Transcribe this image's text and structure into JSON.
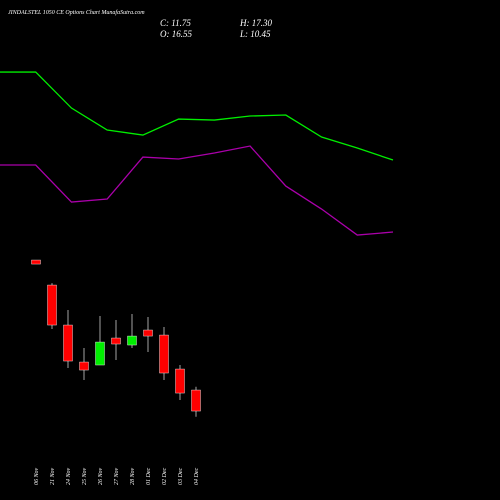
{
  "header": {
    "title": "JINDALSTEL 1050 CE Options Chart MunafaSutra.com",
    "close": "C: 11.75",
    "open": "O: 16.55",
    "high": "H: 17.30",
    "low": "L: 10.45"
  },
  "chart_data": [
    {
      "type": "line",
      "ylim": [
        9.7,
        92
      ],
      "series": [
        {
          "color": "#00ee00",
          "values": [
            89.24,
            89.24,
            81.02,
            75.99,
            74.84,
            78.5,
            78.27,
            79.19,
            79.42,
            74.39,
            71.87,
            69.13
          ]
        },
        {
          "color": "#aa00aa",
          "values": [
            67.99,
            67.99,
            59.53,
            60.21,
            69.81,
            69.36,
            70.73,
            72.33,
            63.18,
            57.93,
            51.98,
            52.67
          ]
        }
      ]
    },
    {
      "type": "candlestick",
      "ylim": [
        9.7,
        92
      ],
      "up_color": "#00ee00",
      "down_color": "#ff0000",
      "categories": [
        "06 Nov",
        "21 Nov",
        "24 Nov",
        "25 Nov",
        "26 Nov",
        "27 Nov",
        "28 Nov",
        "01 Dec",
        "02 Dec",
        "03 Dec",
        "04 Dec"
      ],
      "open": [
        46.27,
        40.55,
        31.41,
        22.95,
        22.27,
        28.44,
        26.84,
        30.27,
        29.12,
        21.35,
        16.55
      ],
      "close": [
        45.35,
        31.41,
        23.18,
        21.12,
        27.52,
        27.07,
        28.89,
        28.89,
        20.44,
        15.86,
        11.75
      ],
      "high": [
        46.27,
        40.99,
        34.84,
        26.15,
        33.47,
        32.55,
        33.92,
        33.24,
        30.95,
        22.27,
        17.3
      ],
      "low": [
        45.35,
        30.49,
        21.58,
        18.84,
        22.27,
        23.41,
        26.15,
        25.24,
        18.84,
        14.26,
        10.45
      ]
    }
  ]
}
